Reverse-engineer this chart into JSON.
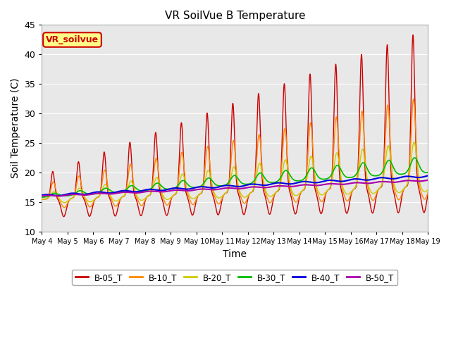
{
  "title": "VR SoilVue B Temperature",
  "xlabel": "Time",
  "ylabel": "Soil Temperature (C)",
  "ylim": [
    10,
    45
  ],
  "yticks": [
    10,
    15,
    20,
    25,
    30,
    35,
    40,
    45
  ],
  "annotation_text": "VR_soilvue",
  "series_labels": [
    "B-05_T",
    "B-10_T",
    "B-20_T",
    "B-30_T",
    "B-40_T",
    "B-50_T"
  ],
  "series_colors": [
    "#cc0000",
    "#ff8800",
    "#cccc00",
    "#00bb00",
    "#0000dd",
    "#aa00aa"
  ],
  "background_color": "#ffffff",
  "plot_bg_color": "#e8e8e8",
  "grid_color": "#ffffff"
}
